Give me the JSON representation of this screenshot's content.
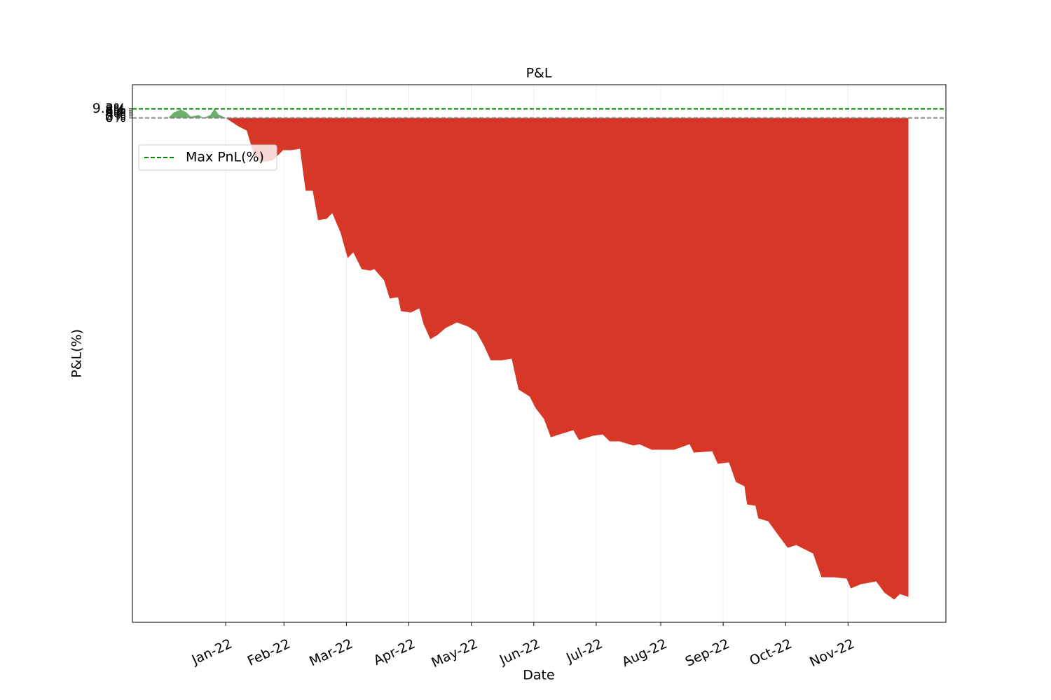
{
  "chart_data": {
    "type": "area",
    "title": "P&L",
    "xlabel": "Date",
    "ylabel": "P&L(%)",
    "x": [
      -27.6,
      -24.9,
      -21.5,
      -18.9,
      -16.8,
      -12.8,
      -10.8,
      -7.4,
      -5.4,
      -3.4,
      0,
      2.0,
      6.1,
      10.1,
      13.5,
      16.8,
      22.9,
      27.6,
      31.6,
      35.7,
      38.4,
      41.8,
      44.4,
      48.5,
      51.2,
      55.2,
      58.6,
      61.3,
      65.3,
      69.4,
      71.4,
      76.1,
      78.8,
      82.8,
      84.2,
      88.9,
      93.0,
      95.0,
      98.3,
      101.7,
      105.7,
      111.1,
      116.5,
      120.5,
      123.9,
      127.3,
      132.7,
      137.4,
      140.7,
      146.1,
      148.8,
      152.9,
      156.2,
      160.3,
      167.0,
      169.7,
      176.4,
      181.1,
      184.5,
      189.2,
      195.9,
      198.7,
      204.7,
      215.5,
      222.9,
      224.9,
      233.7,
      236.4,
      241.8,
      245.1,
      249.2,
      250.5,
      254.5,
      255.9,
      260.6,
      266.0,
      270.0,
      274.1,
      282.2,
      286.2,
      292.3,
      298.3,
      300.3,
      305.1,
      312.5,
      316.5,
      321.2,
      323.9,
      328.0
    ],
    "series": [
      {
        "name": "P&L(%)",
        "color": "#d73727",
        "positive_color": "#6aaf6a",
        "values": [
          0,
          5.7,
          8.6,
          5.7,
          1.4,
          2.9,
          0,
          2.9,
          9.3,
          3.6,
          0,
          -2.9,
          -8.6,
          -12.9,
          -37.2,
          -45.8,
          -43.0,
          -33.0,
          -33.0,
          -31.5,
          -74.5,
          -74.5,
          -104.6,
          -103.2,
          -97.4,
          -117.5,
          -143.3,
          -137.5,
          -154.7,
          -156.2,
          -154.7,
          -166.2,
          -184.8,
          -183.4,
          -197.7,
          -199.1,
          -194.8,
          -210.6,
          -226.4,
          -222.1,
          -214.9,
          -209.2,
          -213.5,
          -219.2,
          -232.1,
          -247.9,
          -247.9,
          -246.4,
          -277.9,
          -285.1,
          -296.6,
          -308.0,
          -326.7,
          -323.8,
          -319.5,
          -329.5,
          -325.2,
          -323.8,
          -330.9,
          -330.9,
          -335.2,
          -333.8,
          -339.5,
          -339.5,
          -333.8,
          -342.4,
          -341.0,
          -353.9,
          -352.4,
          -372.5,
          -376.8,
          -395.4,
          -396.8,
          -409.7,
          -412.6,
          -428.4,
          -439.8,
          -437.0,
          -445.6,
          -469.9,
          -469.9,
          -471.3,
          -481.4,
          -477.1,
          -474.2,
          -485.7,
          -492.8,
          -487.1,
          -490.0
        ]
      }
    ],
    "hlines": [
      {
        "name": "Max PnL(%)",
        "value": 9.3,
        "color": "#008000"
      }
    ],
    "baseline": {
      "value": 0,
      "color": "#808080"
    },
    "xlim": [
      -44.8,
      346
    ],
    "xticks": [
      {
        "value": 0,
        "label": "Jan-22"
      },
      {
        "value": 28,
        "label": "Feb-22"
      },
      {
        "value": 58,
        "label": "Mar-22"
      },
      {
        "value": 88,
        "label": "Apr-22"
      },
      {
        "value": 118,
        "label": "May-22"
      },
      {
        "value": 148,
        "label": "Jun-22"
      },
      {
        "value": 178,
        "label": "Jul-22"
      },
      {
        "value": 209,
        "label": "Aug-22"
      },
      {
        "value": 239,
        "label": "Sep-22"
      },
      {
        "value": 269,
        "label": "Oct-22"
      },
      {
        "value": 299,
        "label": "Nov-22"
      }
    ],
    "ylim": [
      -516,
      34
    ],
    "yticks": [
      {
        "value": 0,
        "label": "0%"
      },
      {
        "value": 2,
        "label": "2%"
      },
      {
        "value": 4,
        "label": "4%"
      },
      {
        "value": 6,
        "label": "6%"
      },
      {
        "value": 8,
        "label": "8%"
      },
      {
        "value": 9.3,
        "label": "9.3%"
      }
    ],
    "grid": true,
    "legend": "upper left"
  }
}
